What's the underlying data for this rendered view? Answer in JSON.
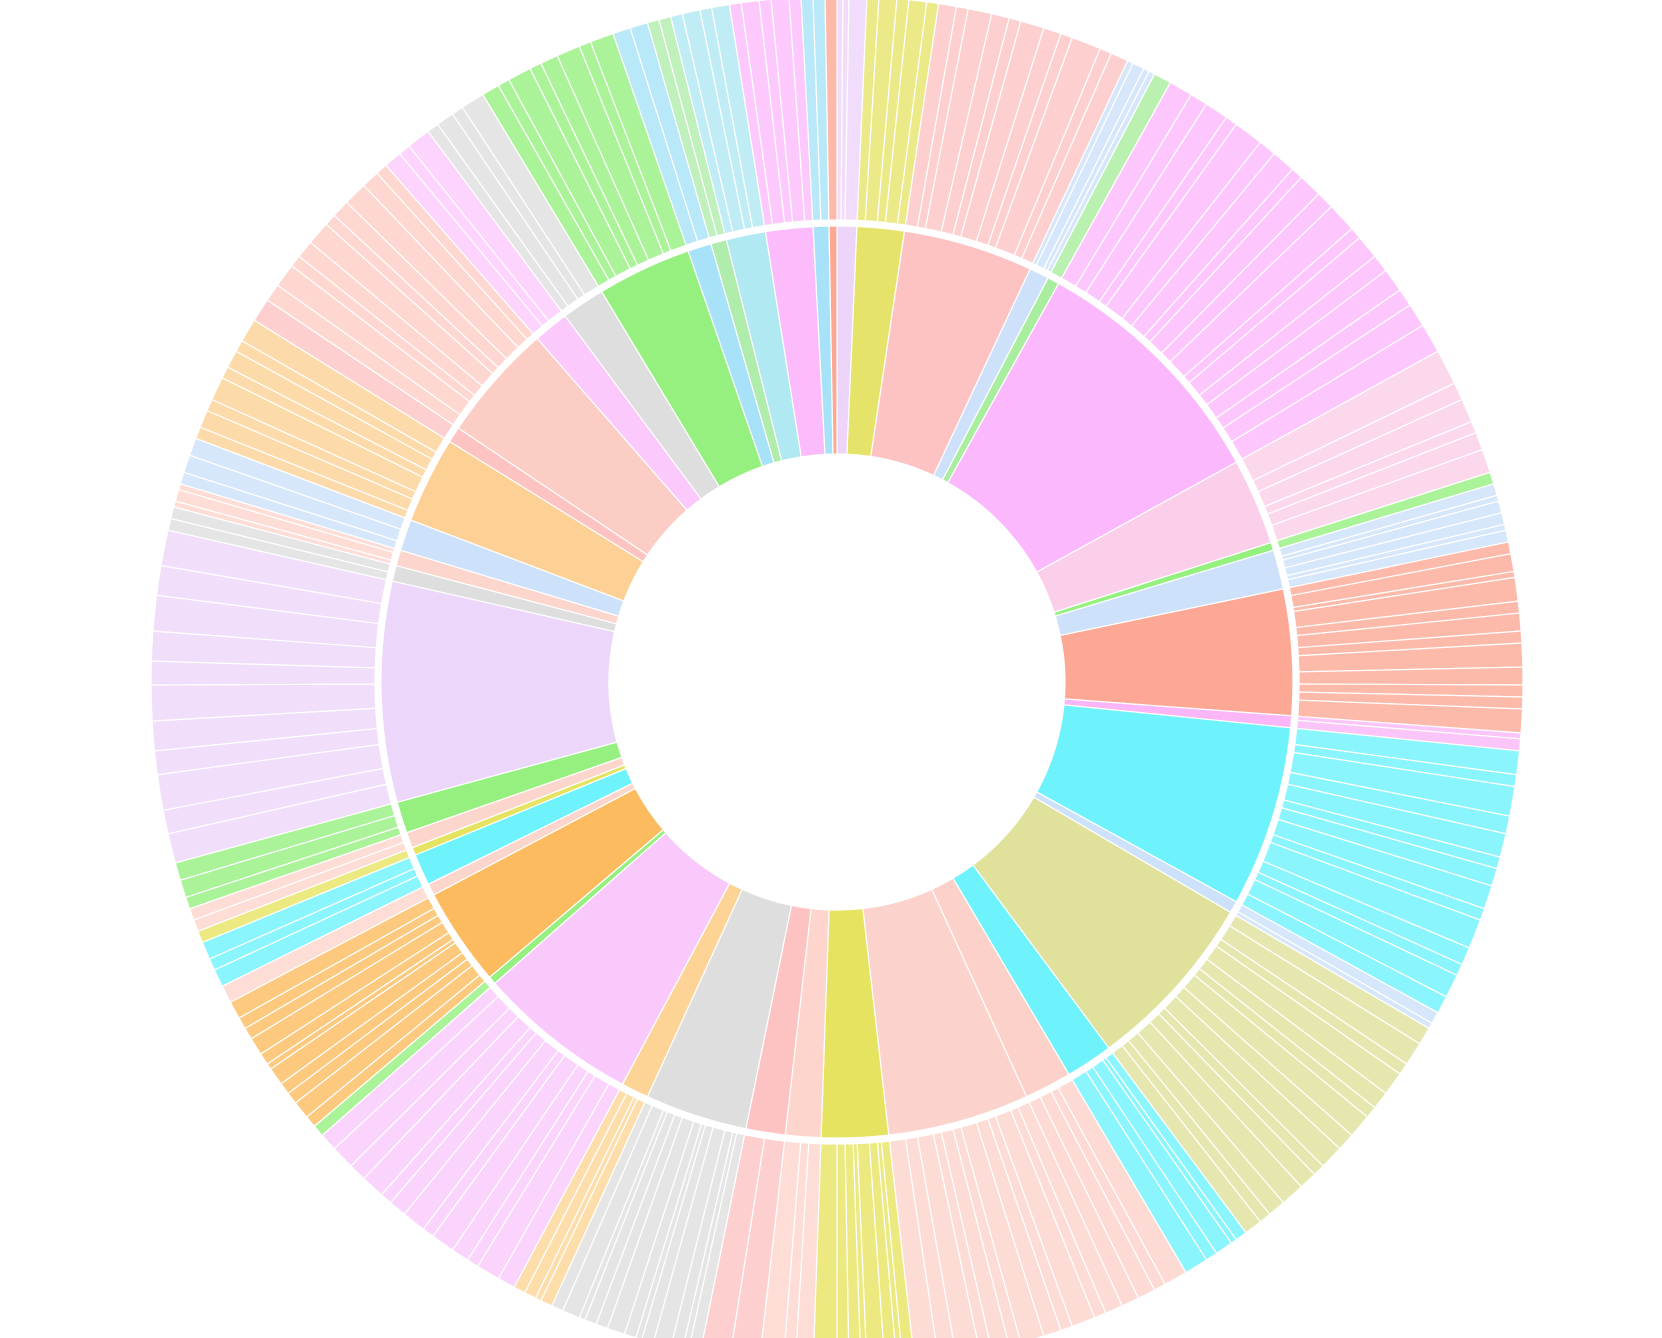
{
  "chart_data": {
    "type": "sunburst",
    "nodes": [
      {
        "value": 2.5,
        "color": "#edd5fa",
        "children": [
          0.5,
          0.5,
          1.5
        ]
      },
      {
        "value": 6,
        "color": "#e6e36a",
        "children": [
          1,
          1.5,
          1,
          1.5,
          1
        ]
      },
      {
        "value": 16.5,
        "color": "#fdc3c3",
        "children": [
          1.5,
          1,
          2,
          1.5,
          1,
          2,
          1.5,
          1,
          2.5,
          1,
          1.5
        ]
      },
      {
        "value": 2.5,
        "color": "#cde1fa",
        "children": [
          0.5,
          1,
          0.5,
          0.5
        ]
      },
      {
        "value": 1.5,
        "color": "#a9ed9e",
        "children": [
          1.5
        ]
      },
      {
        "value": 32,
        "color": "#fcb8fc",
        "children": [
          2,
          1.5,
          2,
          1,
          2.5,
          1.5,
          2,
          1,
          2,
          1.5,
          2.5,
          1,
          2,
          1.5,
          2,
          1.5,
          2,
          2.5
        ]
      },
      {
        "value": 11,
        "color": "#fbcee9",
        "children": [
          3,
          1.5,
          2,
          1,
          1.5,
          2
        ]
      },
      {
        "value": 1,
        "color": "#95f07f",
        "children": [
          1
        ]
      },
      {
        "value": 5,
        "color": "#cde1fa",
        "children": [
          1,
          0.5,
          1,
          1,
          0.5,
          1
        ]
      },
      {
        "value": 16,
        "color": "#fda894",
        "children": [
          1,
          1.5,
          0.5,
          2,
          1,
          1.5,
          1,
          2,
          1.5,
          1,
          1,
          2
        ]
      },
      {
        "value": 1.5,
        "color": "#fbb6f8",
        "children": [
          0.5,
          1
        ]
      },
      {
        "value": 23,
        "color": "#6ef3fc",
        "children": [
          2,
          1,
          2.5,
          1.5,
          2,
          1,
          1.5,
          2,
          1,
          2.5,
          1.5,
          1,
          2,
          1.5
        ]
      },
      {
        "value": 1.5,
        "color": "#cde1fa",
        "children": [
          1,
          0.5
        ]
      },
      {
        "value": 23,
        "color": "#e0e19a",
        "children": [
          1.5,
          2,
          1,
          2,
          1.5,
          1,
          2,
          1.5,
          2,
          1,
          1.5,
          2,
          1.5,
          1,
          1.5
        ]
      },
      {
        "value": 6,
        "color": "#6ef3fc",
        "children": [
          1,
          0.5,
          1.5,
          1,
          2
        ]
      },
      {
        "value": 6,
        "color": "#fcd1c9",
        "children": [
          2,
          1,
          1.5,
          1.5
        ]
      },
      {
        "value": 18,
        "color": "#fcd3cc",
        "children": [
          1.5,
          1,
          2,
          1,
          1.5,
          2,
          1,
          1.5,
          1,
          2,
          1.5,
          2
        ]
      },
      {
        "value": 8.5,
        "color": "#e6e360",
        "children": [
          1,
          0.5,
          1,
          1.5,
          0.5,
          1,
          1,
          2
        ]
      },
      {
        "value": 4.5,
        "color": "#fdd5cc",
        "children": [
          1.5,
          1,
          2
        ]
      },
      {
        "value": 5,
        "color": "#fdc3c3",
        "children": [
          2.5,
          2.5
        ]
      },
      {
        "value": 13,
        "color": "#dedede",
        "children": [
          1,
          0.5,
          1,
          1.5,
          1,
          0.5,
          1,
          1.5,
          1,
          1,
          0.5,
          1.5,
          1
        ]
      },
      {
        "value": 3.5,
        "color": "#fdd495",
        "children": [
          1,
          0.5,
          1,
          1
        ]
      },
      {
        "value": 20.5,
        "color": "#f9c9fc",
        "children": [
          1.5,
          2,
          1,
          1.5,
          2,
          1,
          2,
          1.5,
          1,
          2,
          1.5,
          2,
          1.5
        ]
      },
      {
        "value": 1,
        "color": "#95f07f",
        "children": [
          1
        ]
      },
      {
        "value": 12.5,
        "color": "#fbbb5e",
        "children": [
          1,
          1.5,
          1,
          1,
          1.5,
          0.5,
          1,
          1.5,
          1,
          1,
          1.5
        ]
      },
      {
        "value": 1.5,
        "color": "#fcd5cc",
        "children": [
          1.5
        ]
      },
      {
        "value": 4,
        "color": "#6ef3fc",
        "children": [
          1.5,
          1,
          1.5
        ]
      },
      {
        "value": 1,
        "color": "#e6e360",
        "children": [
          1
        ]
      },
      {
        "value": 2,
        "color": "#fcd5cc",
        "children": [
          1,
          1
        ]
      },
      {
        "value": 4,
        "color": "#95f07f",
        "children": [
          1,
          1.5,
          1.5
        ]
      },
      {
        "value": 28,
        "color": "#ecd6f9",
        "children": [
          2.5,
          2,
          3,
          2,
          2.5,
          3,
          2,
          2.5,
          3,
          2.5,
          3
        ]
      },
      {
        "value": 2,
        "color": "#dedede",
        "children": [
          1,
          1
        ]
      },
      {
        "value": 2,
        "color": "#fcd5cc",
        "children": [
          0.5,
          1,
          0.5
        ]
      },
      {
        "value": 4,
        "color": "#cde1fa",
        "children": [
          1,
          1.5,
          1.5
        ]
      },
      {
        "value": 11,
        "color": "#fdd195",
        "children": [
          1,
          1.5,
          1,
          2,
          1,
          1.5,
          1,
          2
        ]
      },
      {
        "value": 2,
        "color": "#fdc3c3",
        "children": [
          2
        ]
      },
      {
        "value": 15,
        "color": "#fccdc4",
        "children": [
          1.5,
          2,
          1,
          1.5,
          2,
          1,
          1.5,
          2,
          1.5,
          1
        ]
      },
      {
        "value": 4.5,
        "color": "#fcc9fc",
        "children": [
          1.5,
          1,
          2
        ]
      },
      {
        "value": 5.5,
        "color": "#dedede",
        "children": [
          1,
          1.5,
          1,
          2
        ]
      },
      {
        "value": 12,
        "color": "#95f07f",
        "children": [
          1.5,
          1,
          2,
          1,
          1.5,
          2,
          1,
          2
        ]
      },
      {
        "value": 3,
        "color": "#a8e2f8",
        "children": [
          1.5,
          1.5
        ]
      },
      {
        "value": 2,
        "color": "#b0ecab",
        "children": [
          1,
          1
        ]
      },
      {
        "value": 5,
        "color": "#b0e9f2",
        "children": [
          1,
          1.5,
          1,
          1.5
        ]
      },
      {
        "value": 6,
        "color": "#fcbcfc",
        "children": [
          1,
          1.5,
          1,
          1.5,
          1
        ]
      },
      {
        "value": 2,
        "color": "#a8e2f8",
        "children": [
          1,
          1
        ]
      },
      {
        "value": 1,
        "color": "#fda894",
        "children": [
          1
        ]
      }
    ]
  }
}
